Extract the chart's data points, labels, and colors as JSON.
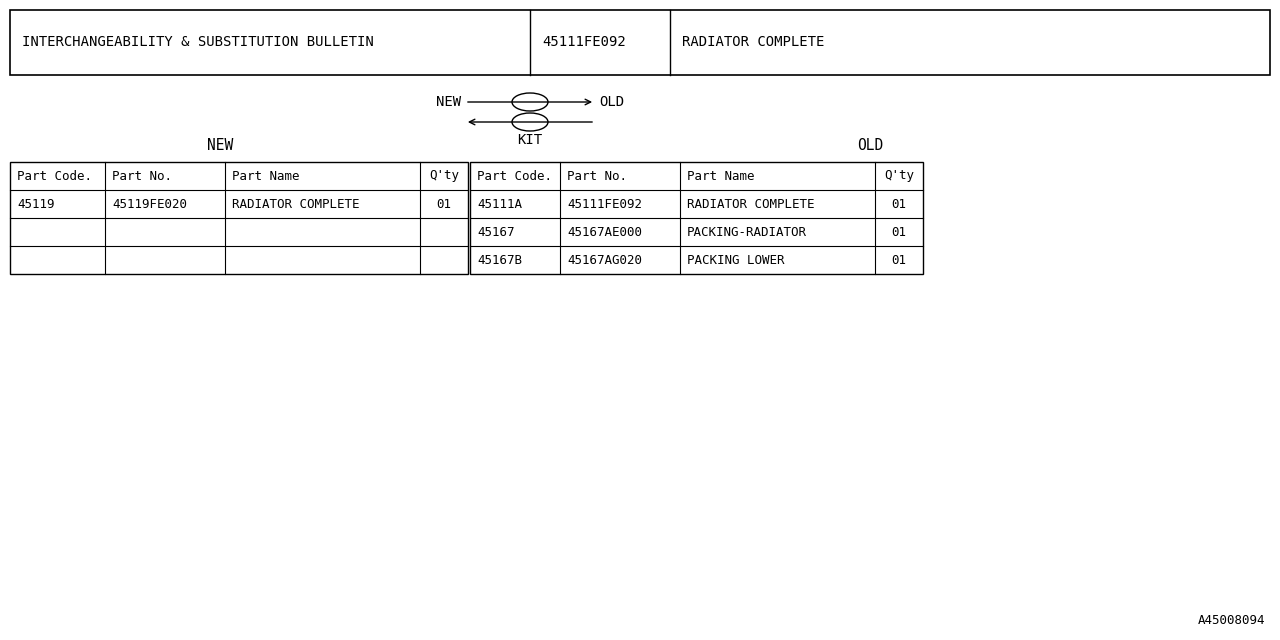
{
  "bg_color": "#ffffff",
  "text_color": "#000000",
  "font_family": "monospace",
  "title_box": {
    "col1": "INTERCHANGEABILITY & SUBSTITUTION BULLETIN",
    "col2": "45111FE092",
    "col3": "RADIATOR COMPLETE"
  },
  "section_labels": {
    "new": "NEW",
    "kit": "KIT",
    "old": "OLD"
  },
  "new_headers": [
    "Part Code.",
    "Part No.",
    "Part Name",
    "Q'ty"
  ],
  "old_headers": [
    "Part Code.",
    "Part No.",
    "Part Name",
    "Q'ty"
  ],
  "new_rows": [
    [
      "45119",
      "45119FE020",
      "RADIATOR COMPLETE",
      "01"
    ]
  ],
  "old_rows": [
    [
      "45111A",
      "45111FE092",
      "RADIATOR COMPLETE",
      "01"
    ],
    [
      "45167",
      "45167AE000",
      "PACKING-RADIATOR",
      "01"
    ],
    [
      "45167B",
      "45167AG020",
      "PACKING LOWER",
      "01"
    ]
  ],
  "watermark": "A45008094"
}
